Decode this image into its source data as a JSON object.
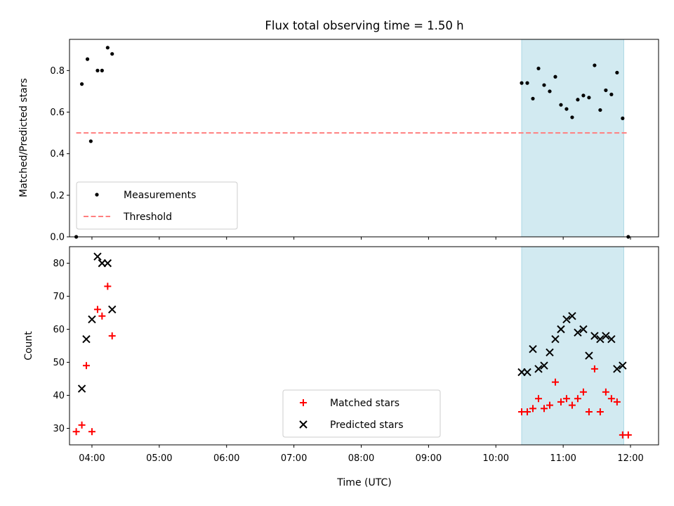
{
  "chart_data": {
    "title": "Flux total observing time = 1.50 h",
    "xlabel": "Time (UTC)",
    "x_ticks": [
      "04:00",
      "05:00",
      "06:00",
      "07:00",
      "08:00",
      "09:00",
      "10:00",
      "11:00",
      "12:00"
    ],
    "x_range": [
      "03:40",
      "12:25"
    ],
    "shaded_interval": [
      "10:23",
      "11:54"
    ],
    "shade_color": "#add8e6",
    "panels": [
      {
        "type": "scatter",
        "ylabel": "Matched/Predicted stars",
        "ylim": [
          0,
          0.95
        ],
        "y_ticks": [
          "0.0",
          "0.2",
          "0.4",
          "0.6",
          "0.8"
        ],
        "legend_position": "lower-left",
        "series": [
          {
            "name": "Measurements",
            "marker": "dot",
            "color": "#000000",
            "points": [
              [
                "03:46",
                0.0
              ],
              [
                "03:51",
                0.735
              ],
              [
                "03:56",
                0.855
              ],
              [
                "03:59",
                0.46
              ],
              [
                "04:05",
                0.8
              ],
              [
                "04:09",
                0.8
              ],
              [
                "04:14",
                0.91
              ],
              [
                "04:18",
                0.88
              ],
              [
                "10:23",
                0.74
              ],
              [
                "10:28",
                0.74
              ],
              [
                "10:33",
                0.665
              ],
              [
                "10:38",
                0.81
              ],
              [
                "10:43",
                0.73
              ],
              [
                "10:48",
                0.7
              ],
              [
                "10:53",
                0.77
              ],
              [
                "10:58",
                0.635
              ],
              [
                "11:03",
                0.615
              ],
              [
                "11:08",
                0.575
              ],
              [
                "11:13",
                0.66
              ],
              [
                "11:18",
                0.68
              ],
              [
                "11:23",
                0.67
              ],
              [
                "11:28",
                0.825
              ],
              [
                "11:33",
                0.61
              ],
              [
                "11:38",
                0.705
              ],
              [
                "11:43",
                0.685
              ],
              [
                "11:48",
                0.79
              ],
              [
                "11:53",
                0.57
              ],
              [
                "11:58",
                0.0
              ]
            ]
          },
          {
            "name": "Threshold",
            "line": "dashed",
            "color": "#ff7f7f",
            "points": [
              [
                "03:46",
                0.5
              ],
              [
                "11:58",
                0.5
              ]
            ]
          }
        ]
      },
      {
        "type": "scatter",
        "ylabel": "Count",
        "ylim": [
          25,
          85
        ],
        "y_ticks": [
          "30",
          "40",
          "50",
          "60",
          "70",
          "80"
        ],
        "legend_position": "lower-center",
        "series": [
          {
            "name": "Matched stars",
            "marker": "plus",
            "color": "#ff0000",
            "points": [
              [
                "03:46",
                29
              ],
              [
                "03:51",
                31
              ],
              [
                "03:55",
                49
              ],
              [
                "04:00",
                29
              ],
              [
                "04:05",
                66
              ],
              [
                "04:09",
                64
              ],
              [
                "04:14",
                73
              ],
              [
                "04:18",
                58
              ],
              [
                "10:23",
                35
              ],
              [
                "10:28",
                35
              ],
              [
                "10:33",
                36
              ],
              [
                "10:38",
                39
              ],
              [
                "10:43",
                36
              ],
              [
                "10:48",
                37
              ],
              [
                "10:53",
                44
              ],
              [
                "10:58",
                38
              ],
              [
                "11:03",
                39
              ],
              [
                "11:08",
                37
              ],
              [
                "11:13",
                39
              ],
              [
                "11:18",
                41
              ],
              [
                "11:23",
                35
              ],
              [
                "11:28",
                48
              ],
              [
                "11:33",
                35
              ],
              [
                "11:38",
                41
              ],
              [
                "11:43",
                39
              ],
              [
                "11:48",
                38
              ],
              [
                "11:53",
                28
              ],
              [
                "11:58",
                28
              ]
            ]
          },
          {
            "name": "Predicted stars",
            "marker": "x",
            "color": "#000000",
            "points": [
              [
                "03:51",
                42
              ],
              [
                "03:55",
                57
              ],
              [
                "04:00",
                63
              ],
              [
                "04:05",
                82
              ],
              [
                "04:09",
                80
              ],
              [
                "04:14",
                80
              ],
              [
                "04:18",
                66
              ],
              [
                "10:23",
                47
              ],
              [
                "10:28",
                47
              ],
              [
                "10:33",
                54
              ],
              [
                "10:38",
                48
              ],
              [
                "10:43",
                49
              ],
              [
                "10:48",
                53
              ],
              [
                "10:53",
                57
              ],
              [
                "10:58",
                60
              ],
              [
                "11:03",
                63
              ],
              [
                "11:08",
                64
              ],
              [
                "11:13",
                59
              ],
              [
                "11:18",
                60
              ],
              [
                "11:23",
                52
              ],
              [
                "11:28",
                58
              ],
              [
                "11:33",
                57
              ],
              [
                "11:38",
                58
              ],
              [
                "11:43",
                57
              ],
              [
                "11:48",
                48
              ],
              [
                "11:53",
                49
              ]
            ]
          }
        ]
      }
    ]
  }
}
